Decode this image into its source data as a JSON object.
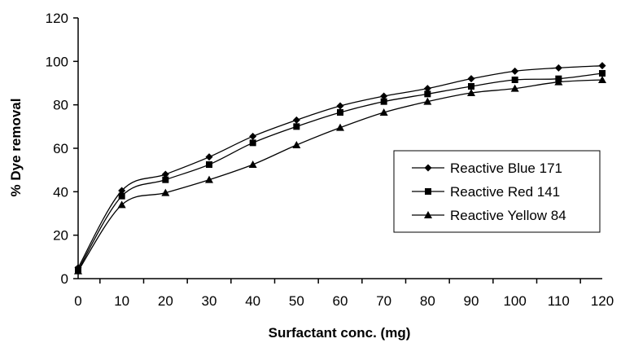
{
  "chart_data": {
    "type": "line",
    "title": "",
    "xlabel": "Surfactant conc. (mg)",
    "ylabel": "% Dye removal",
    "x": [
      0,
      10,
      20,
      30,
      40,
      50,
      60,
      70,
      80,
      90,
      100,
      110,
      120
    ],
    "xlim": [
      0,
      120
    ],
    "ylim": [
      0,
      120
    ],
    "x_ticks": [
      0,
      10,
      20,
      30,
      40,
      50,
      60,
      70,
      80,
      90,
      100,
      110,
      120
    ],
    "y_ticks": [
      0,
      20,
      40,
      60,
      80,
      100,
      120
    ],
    "grid": false,
    "legend_position": "right",
    "series": [
      {
        "name": "Reactive Blue 171",
        "marker": "diamond",
        "values": [
          5,
          40.5,
          48,
          56,
          65.5,
          73,
          79.5,
          84,
          87.5,
          92,
          95.5,
          97,
          98
        ]
      },
      {
        "name": "Reactive Red 141",
        "marker": "square",
        "values": [
          4,
          38,
          45.5,
          52.5,
          62.5,
          70,
          76.5,
          81.5,
          85,
          88.5,
          91.5,
          92,
          94.5
        ]
      },
      {
        "name": "Reactive Yellow 84",
        "marker": "triangle",
        "values": [
          3.5,
          34,
          39.5,
          45.5,
          52.5,
          61.5,
          69.5,
          76.5,
          81.5,
          85.5,
          87.5,
          90.5,
          91.5
        ]
      }
    ],
    "colors": {
      "line": "#000000",
      "marker": "#000000",
      "background": "#ffffff"
    }
  }
}
